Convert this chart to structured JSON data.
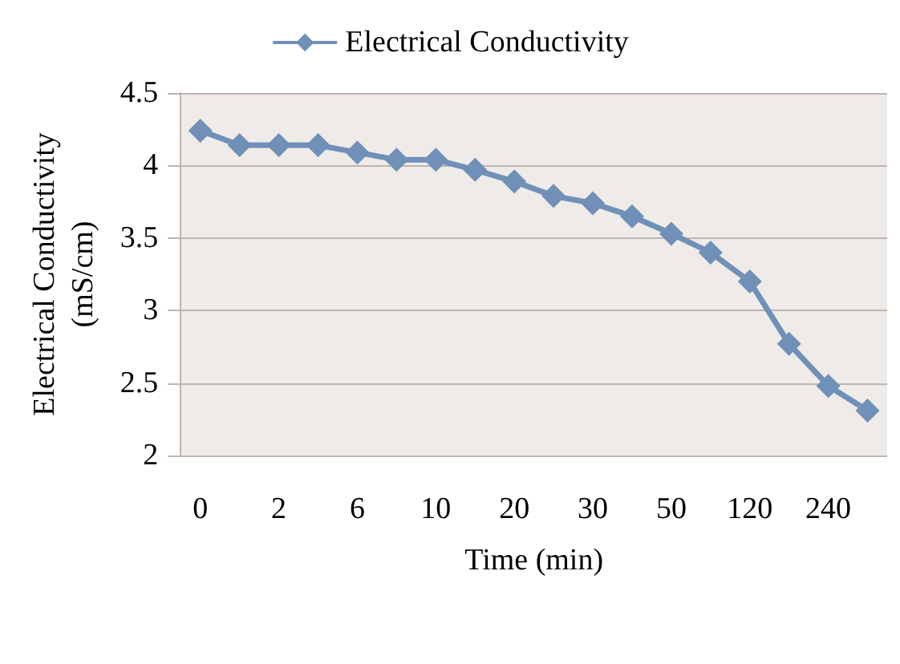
{
  "chart_data": {
    "type": "line",
    "xlabel": "Time (min)",
    "ylabel": "Electrical Conductivity\n(mS/cm)",
    "categories": [
      "0",
      null,
      "2",
      null,
      "6",
      null,
      "10",
      null,
      "20",
      null,
      "30",
      null,
      "50",
      null,
      "120",
      null,
      "240",
      null
    ],
    "series": [
      {
        "name": "Electrical Conductivity",
        "color": "#7090b8",
        "values": [
          4.24,
          4.14,
          4.14,
          4.14,
          4.09,
          4.04,
          4.04,
          3.97,
          3.89,
          3.79,
          3.74,
          3.65,
          3.53,
          3.4,
          3.2,
          2.77,
          2.48,
          2.31
        ]
      }
    ],
    "ylim": [
      2,
      4.5
    ],
    "yticks": [
      2,
      2.5,
      3,
      3.5,
      4,
      4.5
    ],
    "grid": "y",
    "legend": "top",
    "marker": "diamond",
    "line_style": "solid"
  }
}
